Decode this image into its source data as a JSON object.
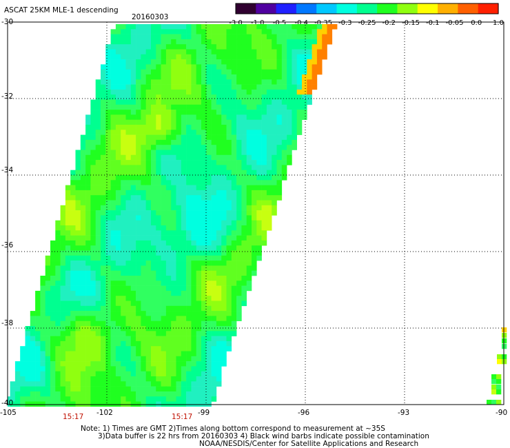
{
  "header": {
    "title": "ASCAT 25KM MLE-1 descending",
    "date": "20160303"
  },
  "colorbar": {
    "tick_labels": [
      "-3.0",
      "-1.0",
      "-0.5",
      "-0.4",
      "-0.35",
      "-0.3",
      "-0.25",
      "-0.2",
      "-0.15",
      "-0.1",
      "-0.05",
      "0.0",
      "1.0"
    ],
    "colors": [
      "#300030",
      "#5000a0",
      "#2020ff",
      "#0078ff",
      "#00c8ff",
      "#00ffe0",
      "#00ff90",
      "#20ff20",
      "#90ff10",
      "#ffff00",
      "#ffb000",
      "#ff6000",
      "#ff2000"
    ]
  },
  "map": {
    "lon_range": [
      -105,
      -90
    ],
    "lat_range": [
      -40,
      -30
    ],
    "x_tick_labels": [
      "-105",
      "-102",
      "-99",
      "-96",
      "-93",
      "-90"
    ],
    "y_tick_labels": [
      "-30",
      "-32",
      "-34",
      "-36",
      "-38",
      "-40"
    ],
    "time_labels": [
      "15:17",
      "15:17"
    ]
  },
  "notes": {
    "line1": "Note: 1) Times are GMT 2)Times along bottom correspond to measurement at ~35S",
    "line2": "3)Data buffer is 22 hrs from 20160303 4) Black wind barbs indicate possible contamination",
    "line3": "NOAA/NESDIS/Center for Satellite Applications and Research"
  }
}
